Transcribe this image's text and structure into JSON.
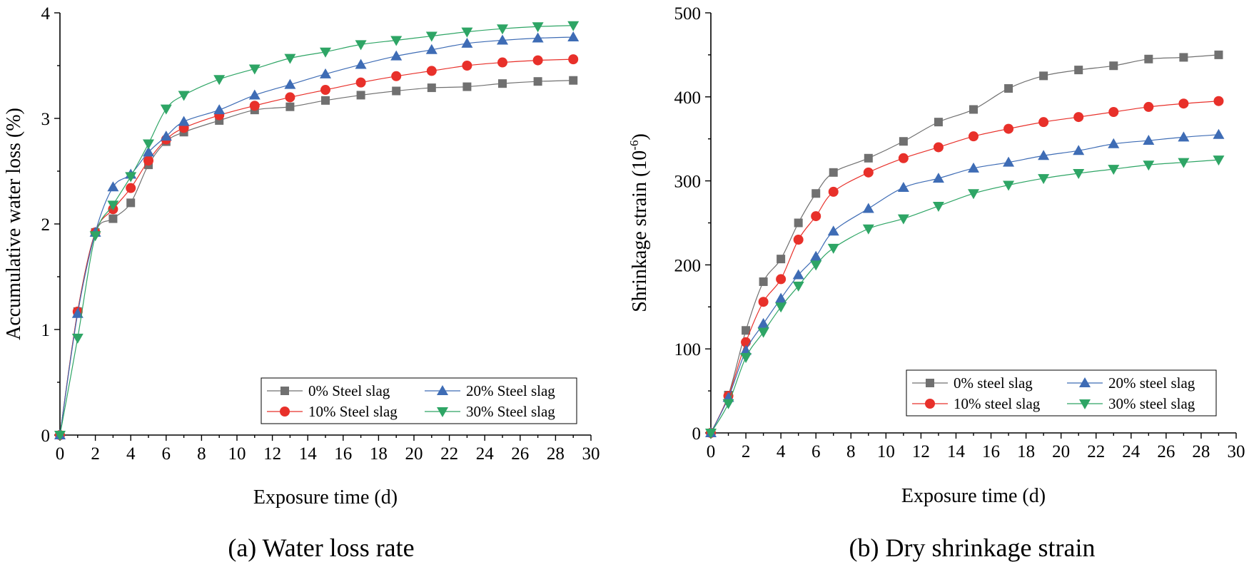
{
  "chart_data": [
    {
      "type": "line",
      "caption": "(a) Water loss rate",
      "xlabel": "Exposure time (d)",
      "ylabel": "Accumulative water loss (%)",
      "xlim": [
        0,
        30
      ],
      "ylim": [
        0,
        4
      ],
      "xticks": [
        0,
        2,
        4,
        6,
        8,
        10,
        12,
        14,
        16,
        18,
        20,
        22,
        24,
        26,
        28,
        30
      ],
      "yticks": [
        0,
        1,
        2,
        3,
        4
      ],
      "legend_position": "bottom-right",
      "series": [
        {
          "name": "0% Steel slag",
          "color": "#707070",
          "marker": "square",
          "x": [
            0,
            1,
            2,
            3,
            4,
            5,
            6,
            7,
            9,
            11,
            13,
            15,
            17,
            19,
            21,
            23,
            25,
            27,
            29
          ],
          "values": [
            0,
            1.17,
            1.92,
            2.05,
            2.2,
            2.56,
            2.78,
            2.87,
            2.98,
            3.08,
            3.11,
            3.17,
            3.22,
            3.26,
            3.29,
            3.3,
            3.33,
            3.35,
            3.36
          ]
        },
        {
          "name": "10% Steel slag",
          "color": "#e8302a",
          "marker": "circle",
          "x": [
            0,
            1,
            2,
            3,
            4,
            5,
            6,
            7,
            9,
            11,
            13,
            15,
            17,
            19,
            21,
            23,
            25,
            27,
            29
          ],
          "values": [
            0,
            1.17,
            1.92,
            2.14,
            2.34,
            2.6,
            2.8,
            2.91,
            3.03,
            3.12,
            3.2,
            3.27,
            3.34,
            3.4,
            3.45,
            3.5,
            3.53,
            3.55,
            3.56
          ]
        },
        {
          "name": "20% Steel slag",
          "color": "#3e6cb5",
          "marker": "triangle-up",
          "x": [
            0,
            1,
            2,
            3,
            4,
            5,
            6,
            7,
            9,
            11,
            13,
            15,
            17,
            19,
            21,
            23,
            25,
            27,
            29
          ],
          "values": [
            0,
            1.15,
            1.92,
            2.35,
            2.47,
            2.68,
            2.83,
            2.97,
            3.08,
            3.22,
            3.32,
            3.42,
            3.51,
            3.59,
            3.65,
            3.71,
            3.74,
            3.76,
            3.77
          ]
        },
        {
          "name": "30% Steel slag",
          "color": "#2ea565",
          "marker": "triangle-down",
          "x": [
            0,
            1,
            2,
            3,
            4,
            5,
            6,
            7,
            9,
            11,
            13,
            15,
            17,
            19,
            21,
            23,
            25,
            27,
            29
          ],
          "values": [
            0,
            0.92,
            1.89,
            2.18,
            2.45,
            2.76,
            3.09,
            3.22,
            3.37,
            3.47,
            3.57,
            3.63,
            3.7,
            3.74,
            3.78,
            3.82,
            3.85,
            3.87,
            3.88
          ]
        }
      ]
    },
    {
      "type": "line",
      "caption": "(b) Dry shrinkage strain",
      "xlabel": "Exposure time (d)",
      "ylabel_main": "Shrinkage strain",
      "ylabel_unit": "(10",
      "ylabel_exp": "-6",
      "ylabel_close": ")",
      "xlim": [
        0,
        30
      ],
      "ylim": [
        0,
        500
      ],
      "xticks": [
        0,
        2,
        4,
        6,
        8,
        10,
        12,
        14,
        16,
        18,
        20,
        22,
        24,
        26,
        28,
        30
      ],
      "yticks": [
        0,
        100,
        200,
        300,
        400,
        500
      ],
      "legend_position": "bottom-right",
      "series": [
        {
          "name": "0% steel slag",
          "color": "#707070",
          "marker": "square",
          "x": [
            0,
            1,
            2,
            3,
            4,
            5,
            6,
            7,
            9,
            11,
            13,
            15,
            17,
            19,
            21,
            23,
            25,
            27,
            29
          ],
          "values": [
            0,
            45,
            122,
            180,
            207,
            250,
            285,
            310,
            327,
            347,
            370,
            385,
            410,
            425,
            432,
            437,
            445,
            447,
            450
          ]
        },
        {
          "name": "10% steel slag",
          "color": "#e8302a",
          "marker": "circle",
          "x": [
            0,
            1,
            2,
            3,
            4,
            5,
            6,
            7,
            9,
            11,
            13,
            15,
            17,
            19,
            21,
            23,
            25,
            27,
            29
          ],
          "values": [
            0,
            44,
            108,
            156,
            183,
            230,
            258,
            287,
            310,
            327,
            340,
            353,
            362,
            370,
            376,
            382,
            388,
            392,
            395
          ]
        },
        {
          "name": "20% steel slag",
          "color": "#3e6cb5",
          "marker": "triangle-up",
          "x": [
            0,
            1,
            2,
            3,
            4,
            5,
            6,
            7,
            9,
            11,
            13,
            15,
            17,
            19,
            21,
            23,
            25,
            27,
            29
          ],
          "values": [
            0,
            42,
            98,
            130,
            160,
            188,
            210,
            240,
            267,
            292,
            303,
            315,
            322,
            330,
            336,
            344,
            348,
            352,
            355
          ]
        },
        {
          "name": "30% steel slag",
          "color": "#2ea565",
          "marker": "triangle-down",
          "x": [
            0,
            1,
            2,
            3,
            4,
            5,
            6,
            7,
            9,
            11,
            13,
            15,
            17,
            19,
            21,
            23,
            25,
            27,
            29
          ],
          "values": [
            0,
            35,
            90,
            120,
            150,
            175,
            200,
            220,
            243,
            255,
            270,
            285,
            295,
            303,
            309,
            314,
            319,
            322,
            325
          ]
        }
      ]
    }
  ]
}
